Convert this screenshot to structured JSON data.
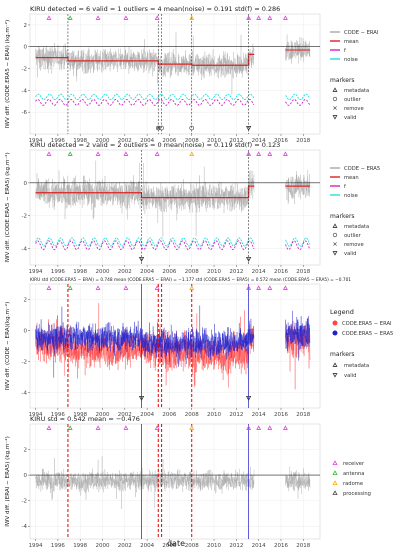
{
  "station": "KIRU",
  "xlabel": "date",
  "x_ticks": [
    1994,
    1996,
    1998,
    2000,
    2002,
    2004,
    2006,
    2008,
    2010,
    2012,
    2014,
    2016,
    2018
  ],
  "colors": {
    "gray": "#a8a8a8",
    "mean": "#dd2222",
    "f": "#cc22cc",
    "noise": "#22dddd",
    "red_series": "#ff4444",
    "blue_series": "#2222cc",
    "receiver": "#e040e0",
    "antenna": "#33bb33",
    "radome": "#ffaa00",
    "processing": "#444444",
    "break_red": "#dd0000",
    "break_blue": "#3333cc"
  },
  "chart_data": [
    {
      "type": "line",
      "title": "KIRU    detected = 6   valid = 1   outliers = 4   mean(noise) = 0.191   std(f) = 0.286",
      "ylabel": "IWV diff. (CODE.ERA5 − ERAI) (kg.m⁻²)",
      "ylim": [
        -8,
        3
      ],
      "yticks": [
        2,
        0,
        -2,
        -4,
        -6
      ],
      "legend_entries": [
        "CODE − ERAI",
        "mean",
        "f",
        "noise"
      ],
      "marker_legend_title": "markers",
      "marker_legend": [
        "metadata",
        "outlier",
        "remove",
        "valid"
      ],
      "segments": [
        {
          "x": [
            1994.0,
            1996.9
          ],
          "mean": -1.0
        },
        {
          "x": [
            1996.9,
            2005.0
          ],
          "mean": -1.3
        },
        {
          "x": [
            2005.0,
            2008.0
          ],
          "mean": -1.6
        },
        {
          "x": [
            2008.0,
            2013.1
          ],
          "mean": -1.7
        },
        {
          "x": [
            2013.1,
            2013.6
          ],
          "mean": -0.7
        },
        {
          "x": [
            2016.4,
            2018.6
          ],
          "mean": -0.3
        }
      ],
      "dashed_breaks": [
        1996.9,
        2005.0,
        2005.3,
        2008.0,
        2013.1
      ],
      "bands": {
        "noise_y": -4.6,
        "f_y": -5.1
      },
      "outlier_markers": [
        2005.0,
        2005.3,
        2008.0
      ],
      "valid_markers": [
        2013.1
      ],
      "remove_markers": [
        2005.0
      ]
    },
    {
      "type": "line",
      "title": "KIRU    detected = 2   valid = 2   outliers = 0   mean(noise) = 0.119   std(f) = 0.123",
      "ylabel": "IWV diff. (CODE.ERA5 − ERA5) (kg.m⁻²)",
      "ylim": [
        -5,
        2
      ],
      "yticks": [
        0,
        -2,
        -4
      ],
      "legend_entries": [
        "CODE − ERA5",
        "mean",
        "f",
        "noise"
      ],
      "marker_legend_title": "markers",
      "marker_legend": [
        "metadata",
        "outlier",
        "remove",
        "valid"
      ],
      "segments": [
        {
          "x": [
            1994.0,
            2003.5
          ],
          "mean": -0.6
        },
        {
          "x": [
            2003.5,
            2013.1
          ],
          "mean": -0.9
        },
        {
          "x": [
            2013.1,
            2013.6
          ],
          "mean": -0.2
        },
        {
          "x": [
            2016.4,
            2018.6
          ],
          "mean": -0.2
        }
      ],
      "dashed_breaks": [
        2003.5,
        2013.1
      ],
      "bands": {
        "noise_y": -3.6,
        "f_y": -3.8
      },
      "valid_markers": [
        2003.5,
        2013.1
      ]
    },
    {
      "type": "line",
      "title": "KIRU    std (CODE.ERA5 − ERAI) = 0.748   mean (CODE.ERA5 − ERAI) = −1.177   std (CODE.ERA5 − ERA5) = 0.572   mean (CODE.ERA5 − ERA5) = −0.701",
      "ylabel": "IWV diff. (CODE − ERA)(kg.m⁻²)",
      "ylim": [
        -5,
        3
      ],
      "yticks": [
        2,
        0,
        -2,
        -4
      ],
      "legend_title": "Legend",
      "legend_entries": [
        "CODE.ERA5 − ERAI",
        "CODE.ERA5 − ERA5"
      ],
      "marker_legend_title": "markers",
      "marker_legend": [
        "metadata",
        "valid"
      ],
      "red_breaks": [
        1996.9,
        2005.0,
        2005.3,
        2008.0
      ],
      "blue_breaks": [
        2003.5,
        2013.1
      ],
      "valid_markers": [
        2003.5,
        2013.1
      ]
    },
    {
      "type": "line",
      "title": "KIRU    std = 0.542   mean = −0.476",
      "ylabel": "IWV diff. (ERAI − ERA5) (kg.m⁻²)",
      "ylim": [
        -5,
        4
      ],
      "yticks": [
        2,
        0,
        -2,
        -4
      ],
      "legend_entries": [
        "receiver",
        "antenna",
        "radome",
        "processing"
      ],
      "red_breaks": [
        1996.9,
        2005.0,
        2005.3,
        2008.0
      ],
      "blue_breaks": [
        2003.5,
        2013.1
      ]
    }
  ],
  "metadata_markers": [
    {
      "x": 1995.2,
      "type": "receiver"
    },
    {
      "x": 1997.1,
      "type": "antenna"
    },
    {
      "x": 1999.6,
      "type": "receiver"
    },
    {
      "x": 2002.1,
      "type": "receiver"
    },
    {
      "x": 2004.9,
      "type": "receiver"
    },
    {
      "x": 2008.0,
      "type": "radome"
    },
    {
      "x": 2013.1,
      "type": "receiver"
    },
    {
      "x": 2014.0,
      "type": "receiver"
    },
    {
      "x": 2015.0,
      "type": "receiver"
    },
    {
      "x": 2016.4,
      "type": "receiver"
    }
  ]
}
